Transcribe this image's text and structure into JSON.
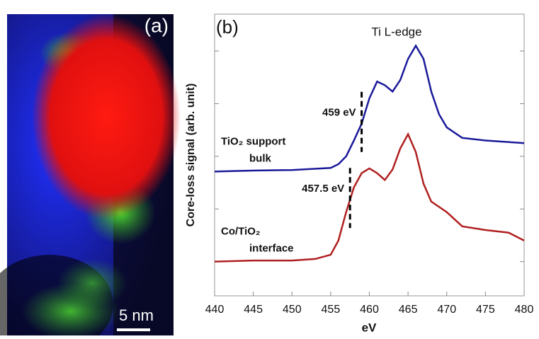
{
  "chart_data": {
    "type": "line",
    "panel_a": {
      "label": "(a)",
      "scale_bar": "5 nm"
    },
    "panel_label": "(b)",
    "title": "Ti L-edge",
    "x_label": "eV",
    "y_label": "Core-loss signal (arb. unit)",
    "xlim": [
      440,
      480
    ],
    "xticks": [
      440,
      445,
      450,
      455,
      460,
      465,
      470,
      475,
      480
    ],
    "ylim": [
      -0.65,
      4.7
    ],
    "yticks": [
      0,
      1,
      2,
      3,
      4
    ],
    "series": [
      {
        "name": "TiO₂ support bulk",
        "legend_lines": [
          "TiO₂ support",
          "bulk"
        ],
        "color": "#1a1a9a",
        "x": [
          440,
          445,
          450,
          455,
          456,
          457,
          458,
          459,
          460,
          461,
          462,
          463,
          464,
          465,
          466,
          467,
          468,
          469,
          470,
          472,
          475,
          478,
          480
        ],
        "values": [
          1.71,
          1.73,
          1.74,
          1.78,
          1.85,
          2.0,
          2.3,
          2.62,
          3.1,
          3.42,
          3.35,
          3.23,
          3.45,
          3.85,
          4.1,
          3.85,
          3.23,
          2.8,
          2.55,
          2.35,
          2.3,
          2.27,
          2.25
        ]
      },
      {
        "name": "Co/TiO₂ interface",
        "legend_lines": [
          "Co/TiO₂",
          "interface"
        ],
        "color": "#b02020",
        "x": [
          440,
          445,
          450,
          453,
          455,
          456,
          457,
          458,
          459,
          460,
          461,
          462,
          463,
          464,
          465,
          466,
          467,
          468,
          470,
          472,
          475,
          478,
          480
        ],
        "values": [
          0.0,
          0.02,
          0.02,
          0.05,
          0.13,
          0.4,
          0.94,
          1.41,
          1.68,
          1.77,
          1.68,
          1.55,
          1.75,
          2.15,
          2.42,
          2.08,
          1.48,
          1.14,
          0.94,
          0.67,
          0.6,
          0.55,
          0.4
        ]
      }
    ],
    "annotations": [
      {
        "text": "459 eV",
        "x": 459,
        "series": 0
      },
      {
        "text": "457.5 eV",
        "x": 457.5,
        "series": 1
      }
    ]
  }
}
